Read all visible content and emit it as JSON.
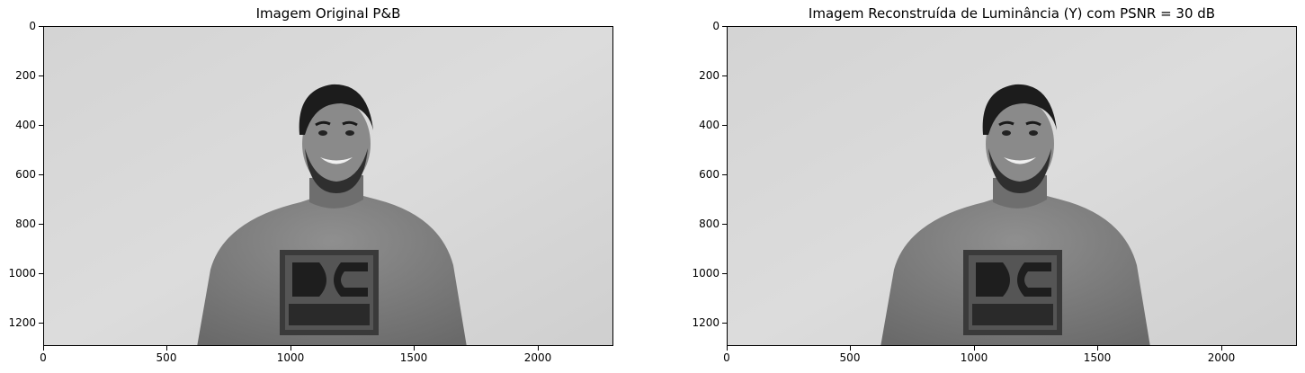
{
  "figure": {
    "left": {
      "title": "Imagem Original P&B",
      "y_ticks": [
        "0",
        "200",
        "400",
        "600",
        "800",
        "1000",
        "1200"
      ],
      "x_ticks": [
        "0",
        "500",
        "1000",
        "1500",
        "2000"
      ]
    },
    "right": {
      "title": "Imagem Reconstruída de Luminância (Y) com PSNR = 30 dB",
      "y_ticks": [
        "0",
        "200",
        "400",
        "600",
        "800",
        "1000",
        "1200"
      ],
      "x_ticks": [
        "0",
        "500",
        "1000",
        "1500",
        "2000"
      ]
    }
  },
  "image_content": "grayscale portrait of a smiling man with curly dark hair and beard wearing a light grey t-shirt with a dark square DC logo print, plain light grey background"
}
